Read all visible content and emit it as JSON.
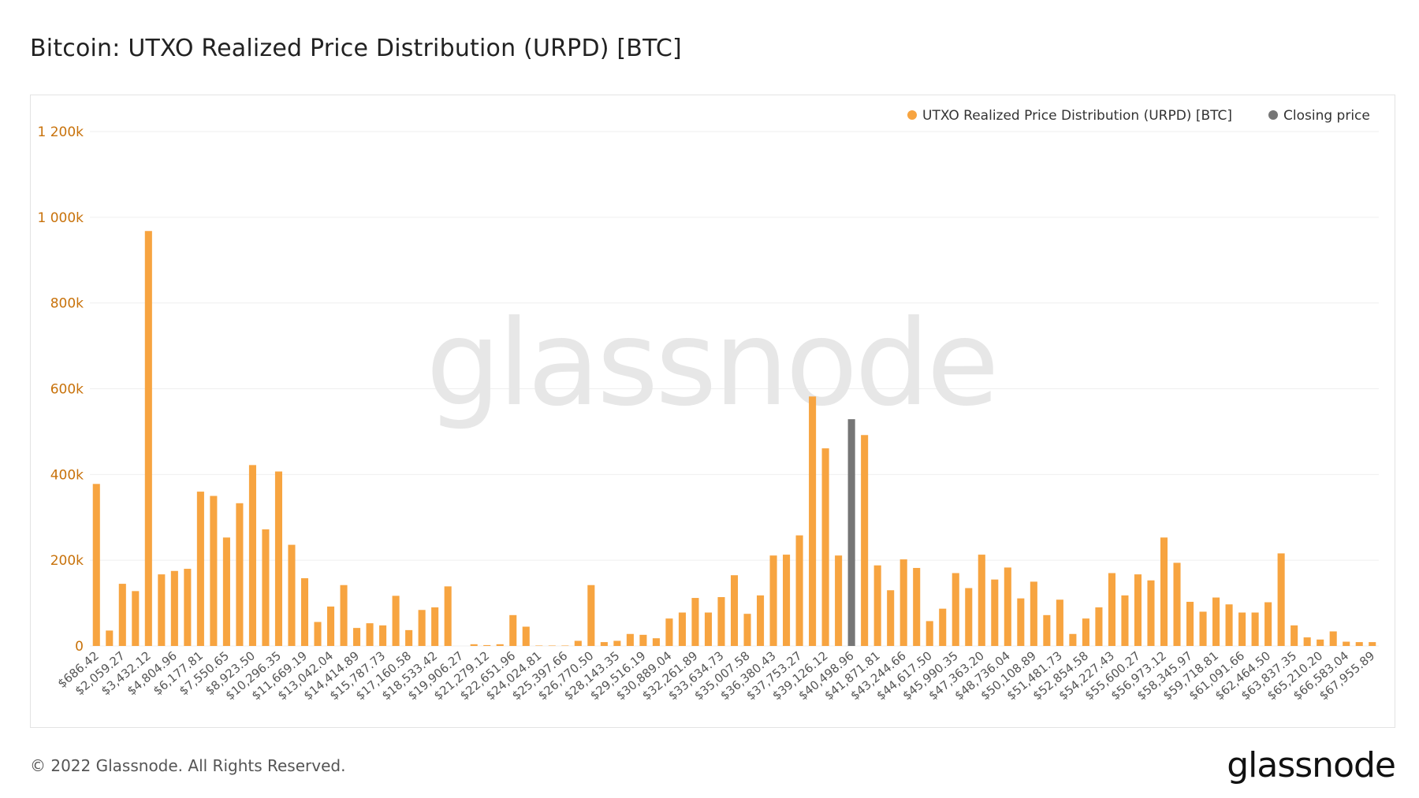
{
  "title": "Bitcoin: UTXO Realized Price Distribution (URPD) [BTC]",
  "watermark": "glassnode",
  "footer": {
    "copyright": "© 2022 Glassnode. All Rights Reserved.",
    "logo": "glassnode"
  },
  "colors": {
    "series": "#f7a440",
    "closing": "#767676",
    "axis_tick": "#c8720b",
    "grid": "#efefef"
  },
  "chart_data": {
    "type": "bar",
    "title": "Bitcoin: UTXO Realized Price Distribution (URPD) [BTC]",
    "xlabel": "",
    "ylabel": "",
    "ylim": [
      0,
      1200000
    ],
    "y_ticks": [
      0,
      200000,
      400000,
      600000,
      800000,
      1000000,
      1200000
    ],
    "y_tick_labels": [
      "0",
      "200k",
      "400k",
      "600k",
      "800k",
      "1 000k",
      "1 200k"
    ],
    "grid": true,
    "legend_position": "top-right",
    "legend": [
      {
        "label": "UTXO Realized Price Distribution (URPD) [BTC]",
        "color": "#f7a440"
      },
      {
        "label": "Closing price",
        "color": "#767676"
      }
    ],
    "x_tick_labels": [
      "$686.42",
      "$2,059.27",
      "$3,432.12",
      "$4,804.96",
      "$6,177.81",
      "$7,550.65",
      "$8,923.50",
      "$10,296.35",
      "$11,669.19",
      "$13,042.04",
      "$14,414.89",
      "$15,787.73",
      "$17,160.58",
      "$18,533.42",
      "$19,906.27",
      "$21,279.12",
      "$22,651.96",
      "$24,024.81",
      "$25,397.66",
      "$26,770.50",
      "$28,143.35",
      "$29,516.19",
      "$30,889.04",
      "$32,261.89",
      "$33,634.73",
      "$35,007.58",
      "$36,380.43",
      "$37,753.27",
      "$39,126.12",
      "$40,498.96",
      "$41,871.81",
      "$43,244.66",
      "$44,617.50",
      "$45,990.35",
      "$47,363.20",
      "$48,736.04",
      "$50,108.89",
      "$51,481.73",
      "$52,854.58",
      "$54,227.43",
      "$55,600.27",
      "$56,973.12",
      "$58,345.97",
      "$59,718.81",
      "$61,091.66",
      "$62,464.50",
      "$63,837.35",
      "$65,210.20",
      "$66,583.04",
      "$67,955.89"
    ],
    "closing_bar_index": 58,
    "series": [
      {
        "name": "UTXO Realized Price Distribution (URPD) [BTC]",
        "values": [
          378000,
          36000,
          145000,
          128000,
          968000,
          167000,
          175000,
          180000,
          360000,
          350000,
          253000,
          333000,
          422000,
          272000,
          407000,
          236000,
          158000,
          56000,
          92000,
          142000,
          42000,
          53000,
          48000,
          117000,
          37000,
          84000,
          90000,
          139000,
          0,
          4000,
          2000,
          4000,
          72000,
          45000,
          1000,
          1000,
          1000,
          12000,
          142000,
          9000,
          12000,
          28000,
          26000,
          18000,
          64000,
          78000,
          112000,
          78000,
          114000,
          165000,
          75000,
          118000,
          211000,
          213000,
          258000,
          582000,
          461000,
          211000,
          529000,
          492000,
          188000,
          130000,
          202000,
          182000,
          58000,
          87000,
          170000,
          135000,
          213000,
          155000,
          183000,
          111000,
          150000,
          72000,
          108000,
          28000,
          64000,
          90000,
          170000,
          118000,
          167000,
          153000,
          253000,
          194000,
          103000,
          80000,
          113000,
          97000,
          78000,
          78000,
          102000,
          216000,
          48000,
          20000,
          15000,
          34000,
          10000,
          9000,
          9000
        ]
      }
    ]
  }
}
